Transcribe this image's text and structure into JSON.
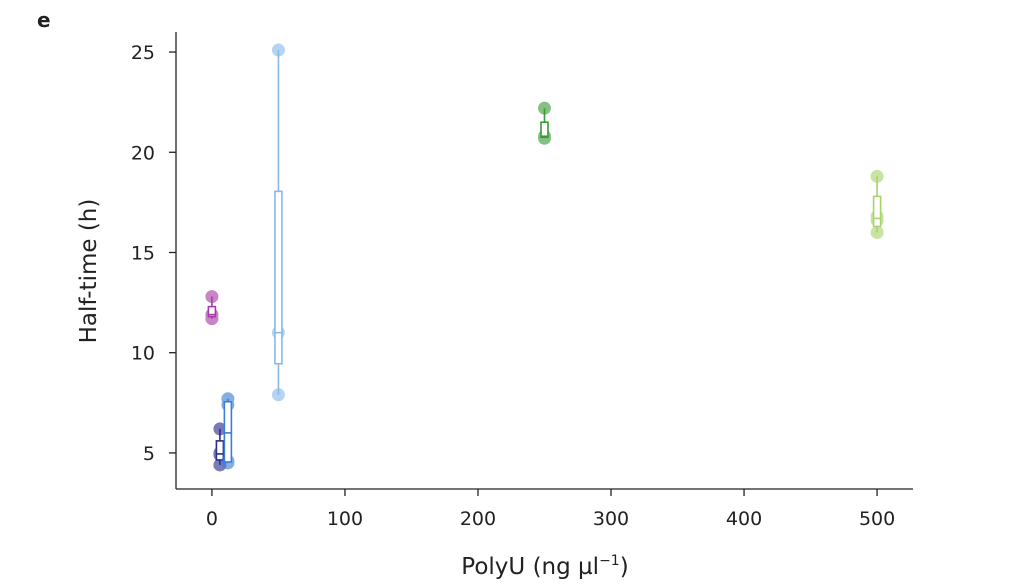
{
  "panel_label": "e",
  "chart_data": {
    "type": "scatter",
    "xlabel": "PolyU (ng µl⁻¹)",
    "xlabel_parts": {
      "base": "PolyU (ng µl",
      "sup": "−1",
      "end": ")"
    },
    "ylabel": "Half-time (h)",
    "xlim": [
      -27,
      527
    ],
    "ylim": [
      3.2,
      26.0
    ],
    "xticks": [
      0,
      100,
      200,
      300,
      400,
      500
    ],
    "yticks": [
      5,
      10,
      15,
      20,
      25
    ],
    "grid": false,
    "legend": "none",
    "groups": [
      {
        "x": 0,
        "color": "#a63aa6",
        "points": [
          12.8,
          11.9,
          11.7
        ],
        "box": {
          "q1": 11.8,
          "median": 11.9,
          "q3": 12.3
        },
        "whisker": [
          11.7,
          12.8
        ]
      },
      {
        "x": 6,
        "color": "#2c2c8c",
        "points": [
          6.2,
          5.0,
          4.9,
          4.4
        ],
        "box": {
          "q1": 4.65,
          "median": 4.95,
          "q3": 5.6
        },
        "whisker": [
          4.4,
          6.2
        ]
      },
      {
        "x": 12,
        "color": "#3b7fd4",
        "points": [
          7.7,
          7.4,
          4.6,
          4.5
        ],
        "box": {
          "q1": 4.55,
          "median": 6.0,
          "q3": 7.55
        },
        "whisker": [
          4.5,
          7.7
        ]
      },
      {
        "x": 50,
        "color": "#86b9e8",
        "points": [
          25.1,
          11.0,
          7.9
        ],
        "box": {
          "q1": 9.45,
          "median": 11.0,
          "q3": 18.05
        },
        "whisker": [
          7.9,
          25.1
        ]
      },
      {
        "x": 250,
        "color": "#3a9a3a",
        "points": [
          22.2,
          20.8,
          20.7
        ],
        "box": {
          "q1": 20.75,
          "median": 20.8,
          "q3": 21.5
        },
        "whisker": [
          20.7,
          22.2
        ]
      },
      {
        "x": 500,
        "color": "#a6d46a",
        "points": [
          18.8,
          16.8,
          16.6,
          16.0
        ],
        "box": {
          "q1": 16.3,
          "median": 16.7,
          "q3": 17.8
        },
        "whisker": [
          16.0,
          18.8
        ]
      }
    ]
  }
}
